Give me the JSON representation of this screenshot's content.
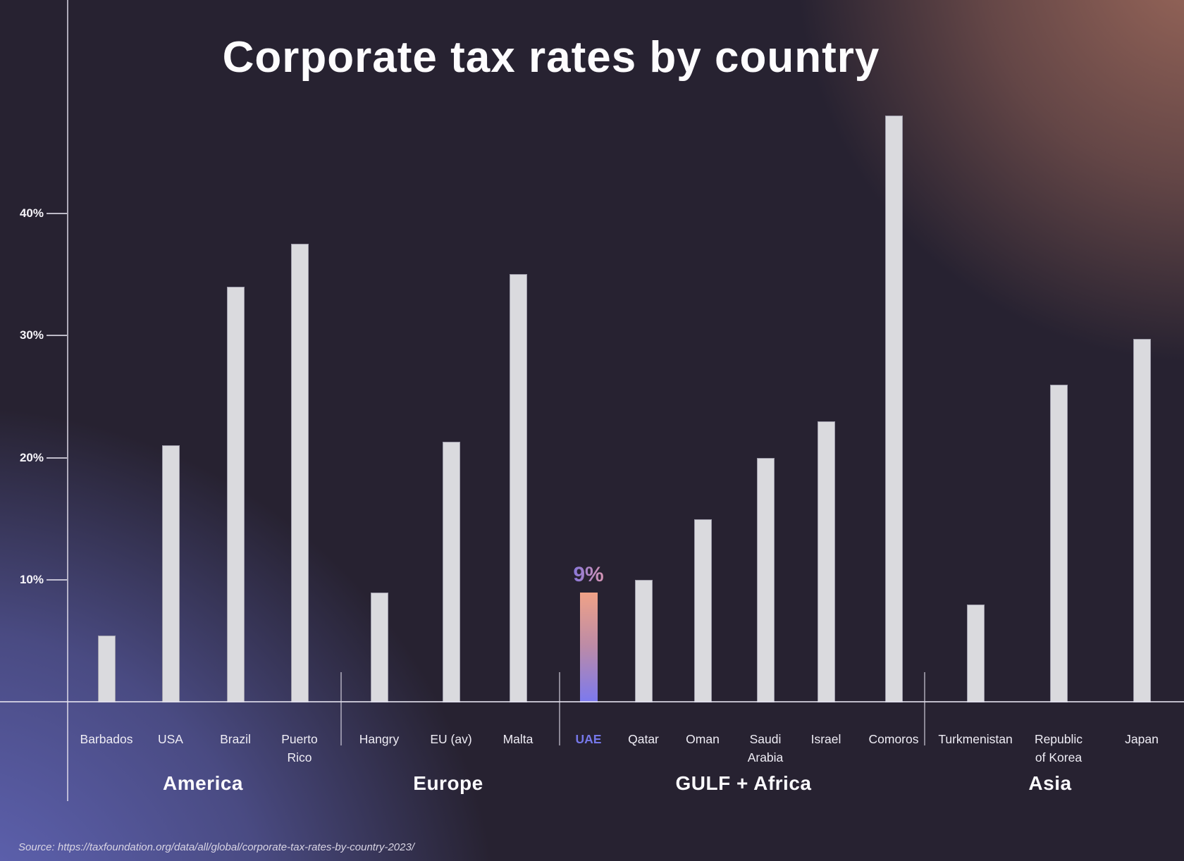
{
  "title": "Corporate tax rates by country",
  "source": "Source: https://taxfoundation.org/data/all/global/corporate-tax-rates-by-country-2023/",
  "colors": {
    "bar": "#dadade",
    "highlight_bar_top": "#f0a287",
    "highlight_bar_bottom": "#7b79ef",
    "highlight_label_left": "#6e6ce4",
    "highlight_label_right": "#f0a0a8",
    "highlight_country_label": "#7678ea",
    "background_base": "#272231",
    "background_glow_bottom_left": "#666cc5",
    "background_glow_top_right": "#a06b5c"
  },
  "chart_data": {
    "type": "bar",
    "title": "Corporate tax rates by country",
    "unit": "percent",
    "ylim": [
      0,
      50
    ],
    "grid": false,
    "yticks": [
      {
        "value": 40,
        "label": "40%"
      },
      {
        "value": 30,
        "label": "30%"
      },
      {
        "value": 20,
        "label": "20%"
      },
      {
        "value": 10,
        "label": "10%"
      }
    ],
    "groups": [
      {
        "region": "America",
        "items": [
          {
            "country": "Barbados",
            "label": "Barbados",
            "value": 5.5
          },
          {
            "country": "USA",
            "label": "USA",
            "value": 21
          },
          {
            "country": "Brazil",
            "label": "Brazil",
            "value": 34
          },
          {
            "country": "Puerto Rico",
            "label": "Puerto\nRico",
            "value": 37.5
          }
        ]
      },
      {
        "region": "Europe",
        "items": [
          {
            "country": "Hangry",
            "label": "Hangry",
            "value": 9
          },
          {
            "country": "EU (av)",
            "label": "EU (av)",
            "value": 21.3
          },
          {
            "country": "Malta",
            "label": "Malta",
            "value": 35
          }
        ]
      },
      {
        "region": "GULF + Africa",
        "items": [
          {
            "country": "UAE",
            "label": "UAE",
            "value": 9,
            "highlight": true,
            "data_label": "9%"
          },
          {
            "country": "Qatar",
            "label": "Qatar",
            "value": 10
          },
          {
            "country": "Oman",
            "label": "Oman",
            "value": 15
          },
          {
            "country": "Saudi Arabia",
            "label": "Saudi\nArabia",
            "value": 20
          },
          {
            "country": "Israel",
            "label": "Israel",
            "value": 23
          },
          {
            "country": "Comoros",
            "label": "Comoros",
            "value": 48
          }
        ]
      },
      {
        "region": "Asia",
        "items": [
          {
            "country": "Turkmenistan",
            "label": "Turkmenistan",
            "value": 8
          },
          {
            "country": "Republic of Korea",
            "label": "Republic\nof Korea",
            "value": 26
          },
          {
            "country": "Japan",
            "label": "Japan",
            "value": 29.7
          }
        ]
      }
    ]
  }
}
